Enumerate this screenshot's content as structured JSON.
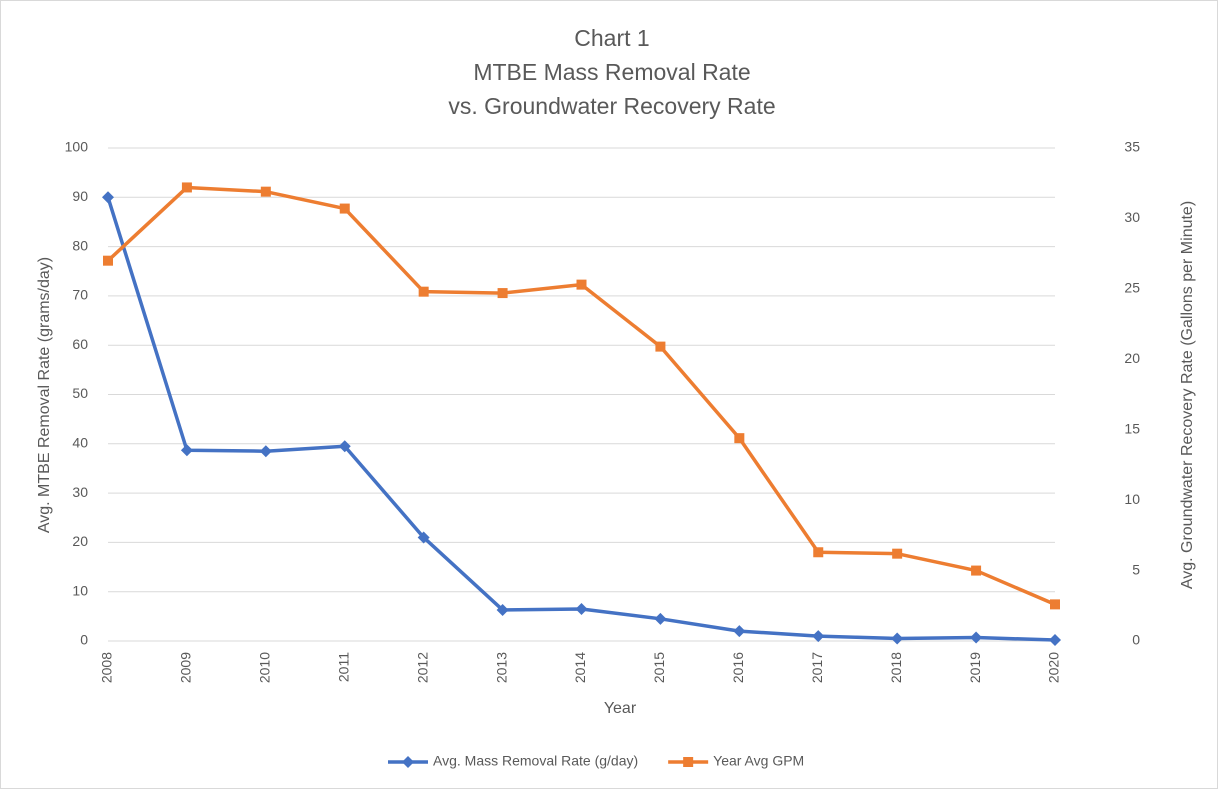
{
  "chart_data": {
    "type": "line",
    "title": [
      "Chart 1",
      "MTBE Mass Removal Rate",
      "vs. Groundwater Recovery Rate"
    ],
    "x_label": "Year",
    "y_label": "Avg. MTBE Removal Rate (grams/day)",
    "y2_label": "Avg. Groundwater Recovery Rate (Gallons per Minute)",
    "categories": [
      "2008",
      "2009",
      "2010",
      "2011",
      "2012",
      "2013",
      "2014",
      "2015",
      "2016",
      "2017",
      "2018",
      "2019",
      "2020"
    ],
    "series": [
      {
        "name": "Avg. Mass Removal Rate (g/day)",
        "color": "#4472c4",
        "marker": "diamond",
        "values": [
          90,
          38.7,
          38.5,
          39.5,
          21,
          6.3,
          6.5,
          4.5,
          2,
          1,
          0.5,
          0.7,
          0.2
        ]
      },
      {
        "name": "Year Avg GPM",
        "color": "#ed7d31",
        "marker": "square",
        "axis": "y2",
        "values": [
          27.0,
          32.2,
          31.9,
          30.7,
          24.8,
          24.7,
          25.3,
          20.9,
          14.4,
          6.3,
          6.2,
          5.0,
          2.6
        ]
      }
    ],
    "ylim": [
      0,
      100
    ],
    "yticks": [
      0,
      10,
      20,
      30,
      40,
      50,
      60,
      70,
      80,
      90,
      100
    ],
    "y2lim": [
      0,
      35
    ],
    "y2ticks": [
      0,
      5,
      10,
      15,
      20,
      25,
      30,
      35
    ],
    "grid": true,
    "legend": "bottom"
  }
}
